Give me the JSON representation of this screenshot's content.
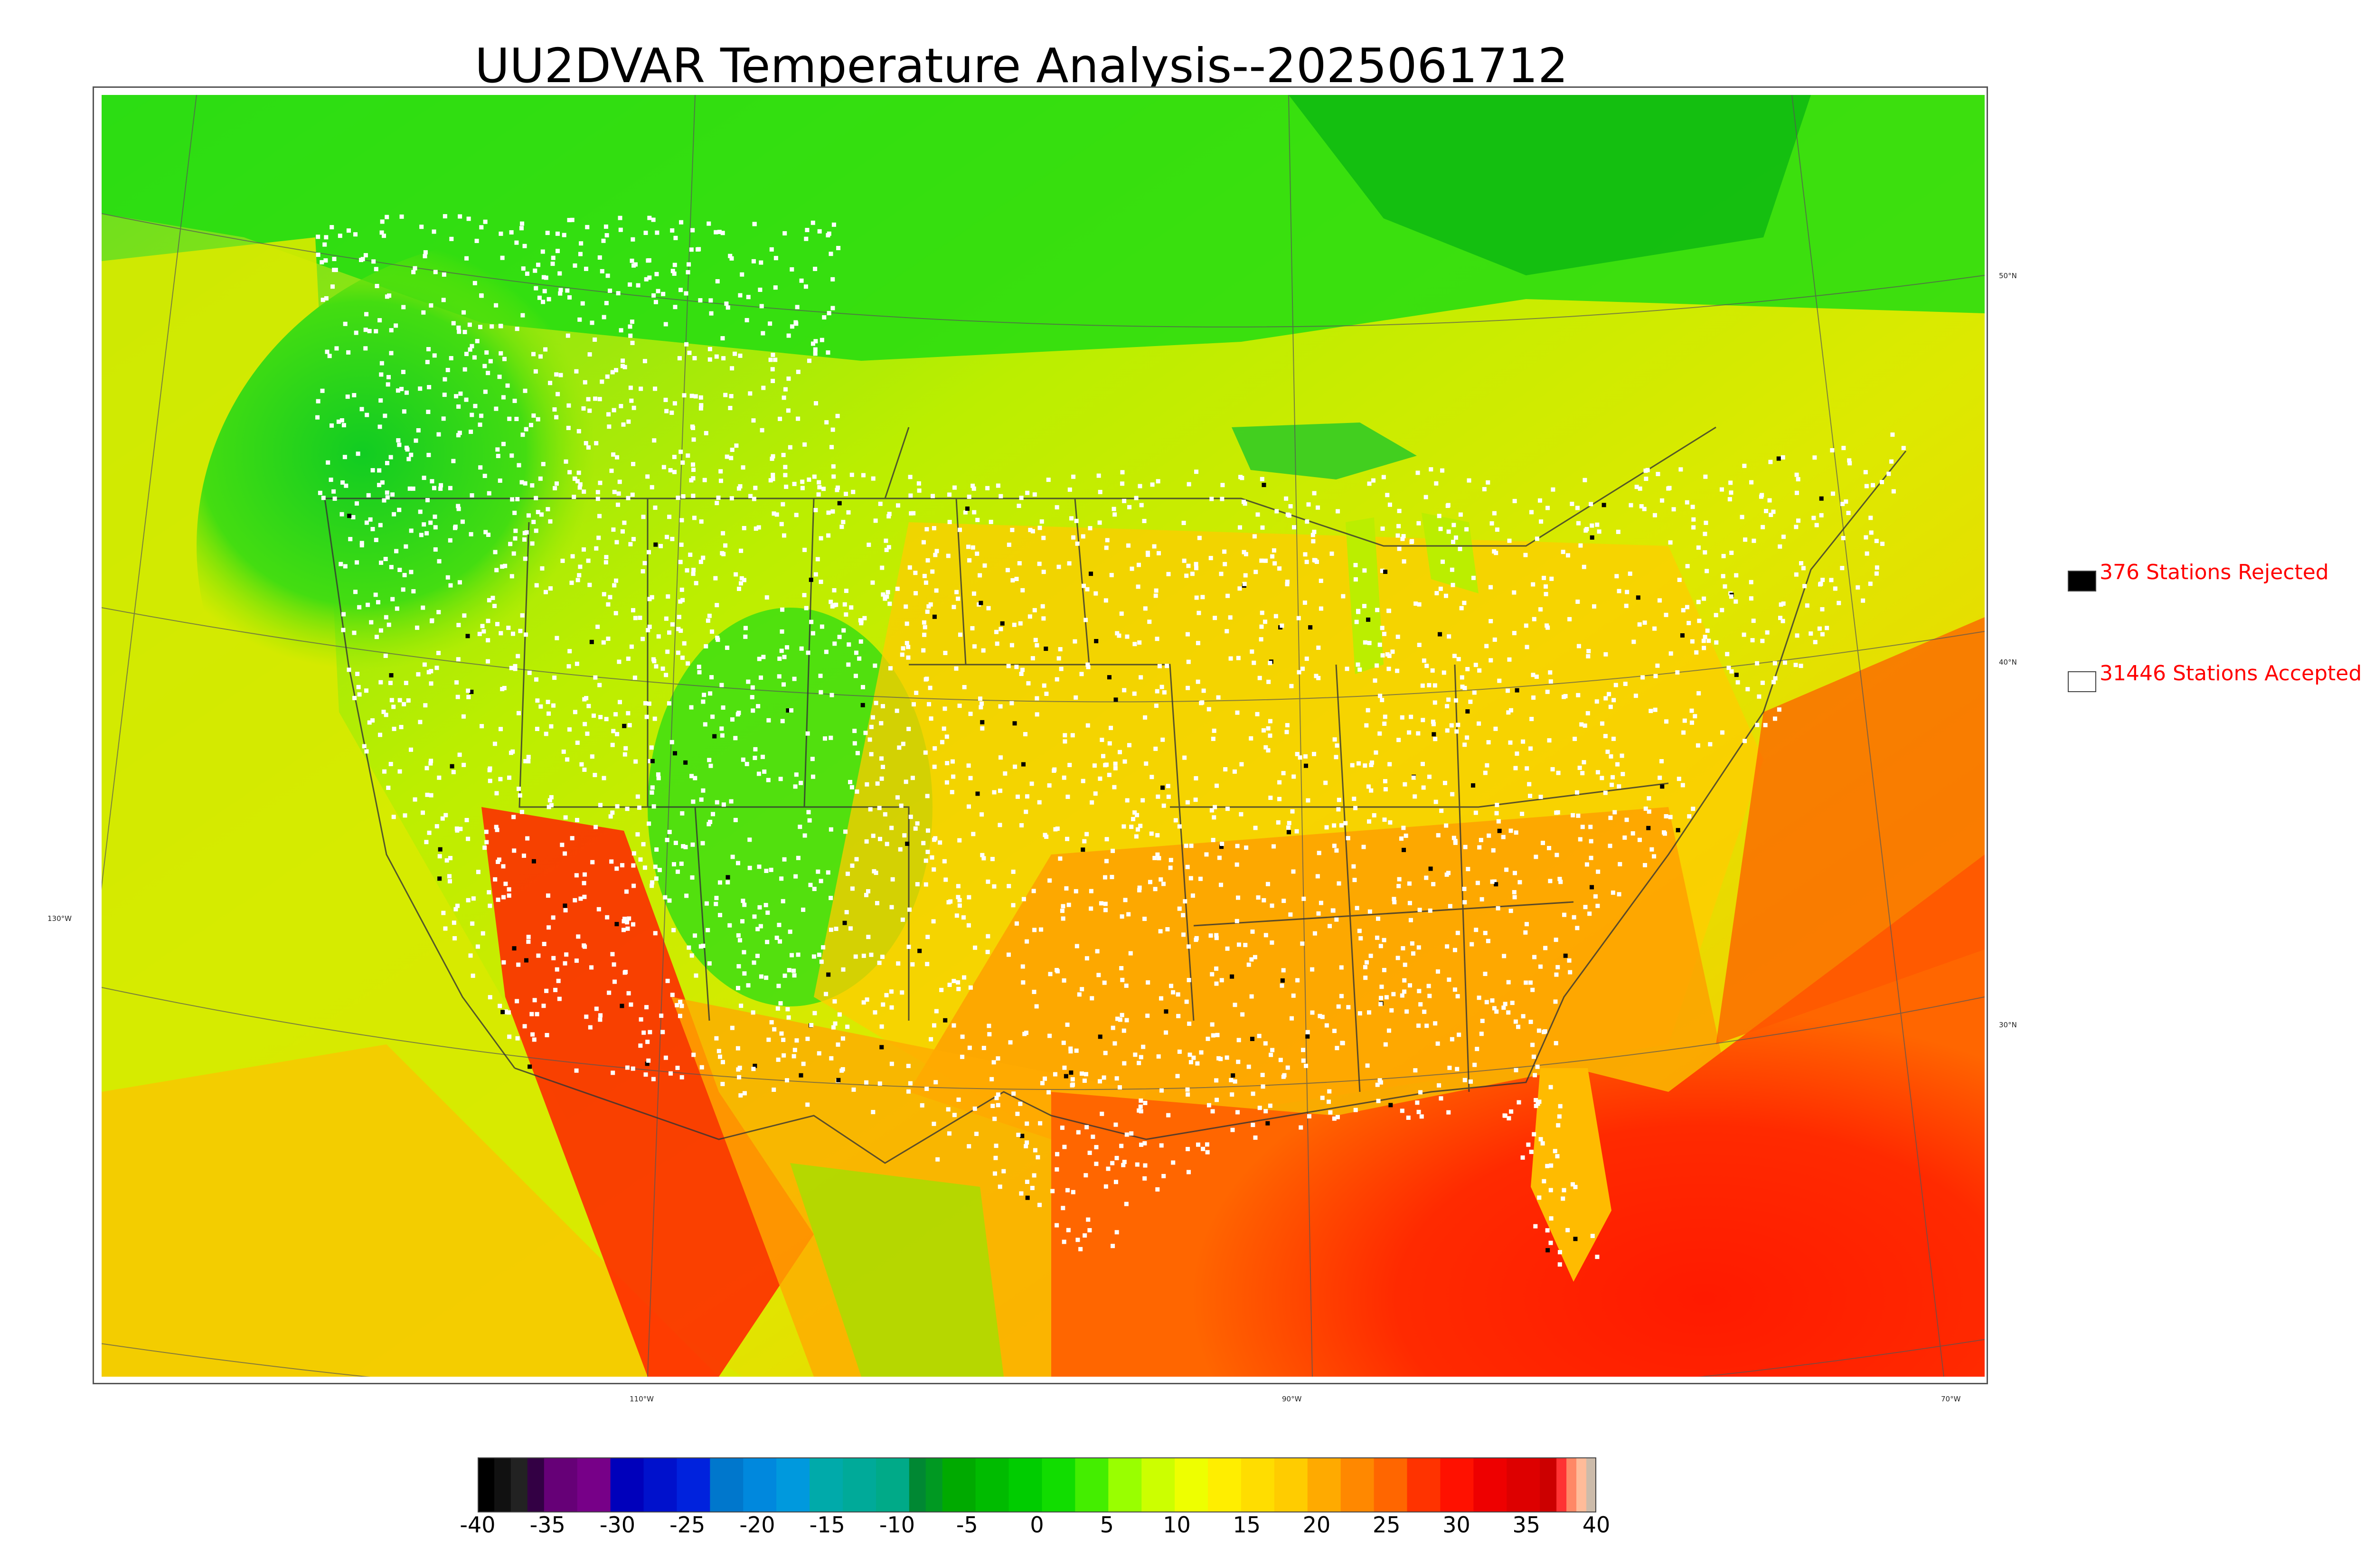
{
  "title": "UU2DVAR Temperature Analysis--2025061712",
  "legend": {
    "rejected": {
      "label": "376 Stations Rejected",
      "color": "#000000"
    },
    "accepted": {
      "label": "31446 Stations Accepted",
      "color": "#ffffff"
    }
  },
  "lat_labels": [
    "50°N",
    "40°N",
    "30°N"
  ],
  "lon_labels": [
    "130°W",
    "110°W",
    "90°W",
    "70°W"
  ],
  "colorbar": {
    "min": -40,
    "max": 40,
    "ticks": [
      "-40",
      "-35",
      "-30",
      "-25",
      "-20",
      "-15",
      "-10",
      "-5",
      "0",
      "5",
      "10",
      "15",
      "20",
      "25",
      "30",
      "35",
      "40"
    ]
  },
  "colors": {
    "cold_green": "#22cc22",
    "cool_green": "#44dd11",
    "yellow_green": "#ccee00",
    "yellow": "#eeee00",
    "orange": "#ffaa00",
    "dark_orange": "#ff7700",
    "red": "#ff1100",
    "ocean_cool": "#ccf000",
    "ocean_warm": "#ff2200"
  }
}
